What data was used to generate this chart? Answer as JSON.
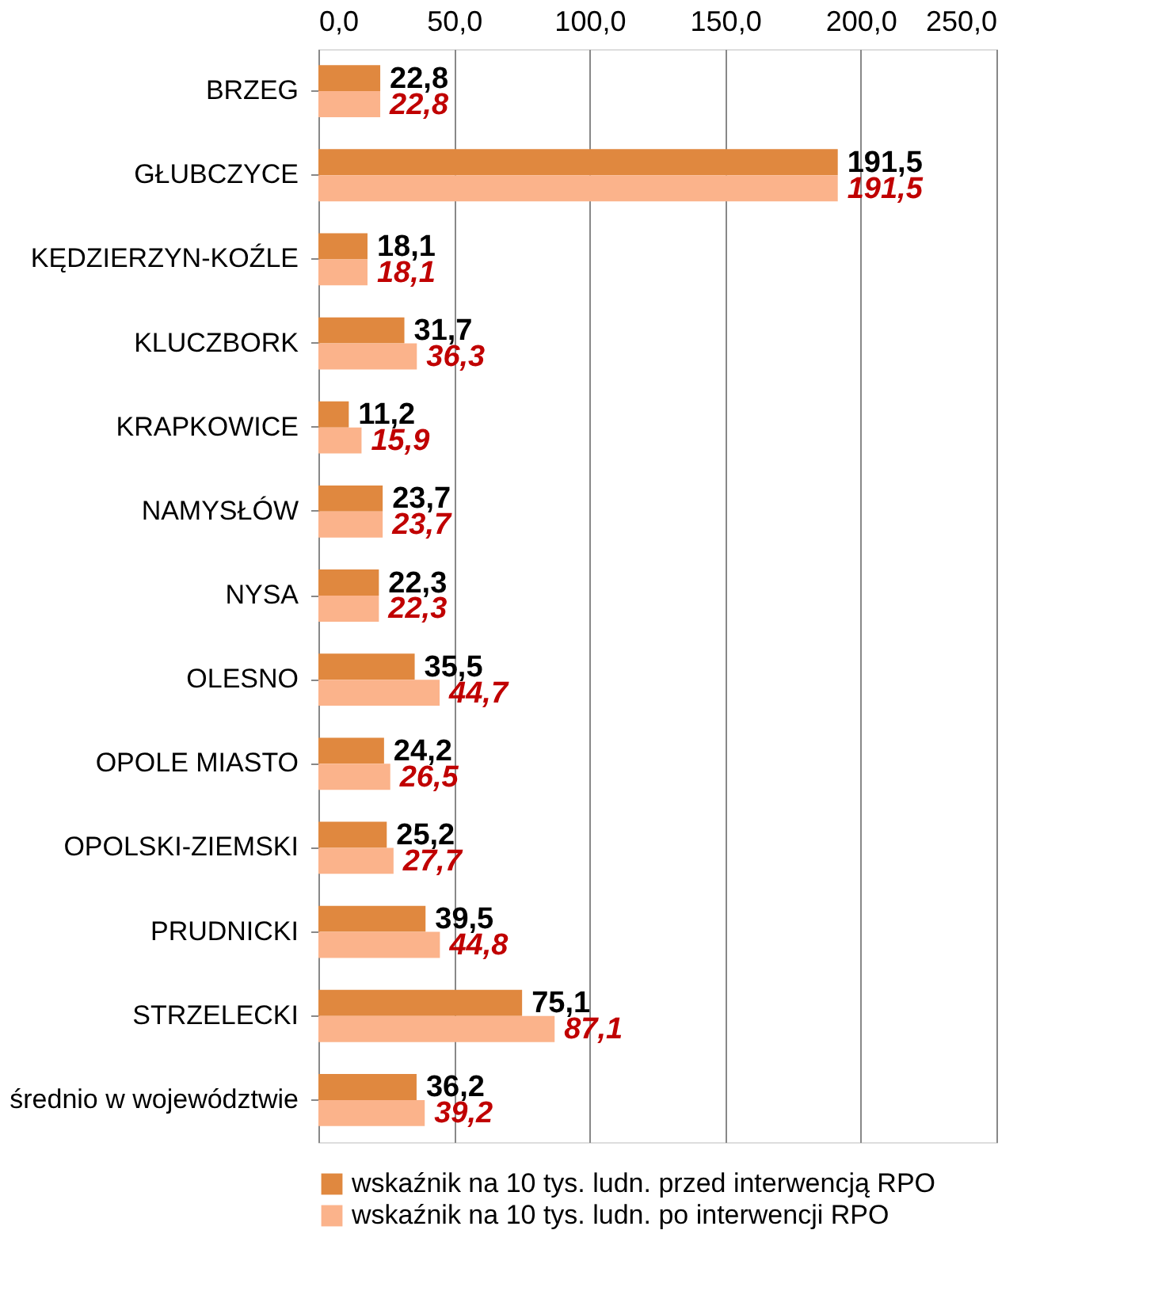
{
  "chart_data": {
    "type": "bar",
    "orientation": "horizontal",
    "categories": [
      "BRZEG",
      "GŁUBCZYCE",
      "KĘDZIERZYN-KOŹLE",
      "KLUCZBORK",
      "KRAPKOWICE",
      "NAMYSŁÓW",
      "NYSA",
      "OLESNO",
      "OPOLE MIASTO",
      "OPOLSKI-ZIEMSKI",
      "PRUDNICKI",
      "STRZELECKI",
      "średnio w województwie"
    ],
    "series": [
      {
        "name": "wskaźnik na 10 tys. ludn. przed interwencją RPO",
        "color": "#e0883f",
        "values": [
          22.8,
          191.5,
          18.1,
          31.7,
          11.2,
          23.7,
          22.3,
          35.5,
          24.2,
          25.2,
          39.5,
          75.1,
          36.2
        ],
        "value_labels": [
          "22,8",
          "191,5",
          "18,1",
          "31,7",
          "11,2",
          "23,7",
          "22,3",
          "35,5",
          "24,2",
          "25,2",
          "39,5",
          "75,1",
          "36,2"
        ]
      },
      {
        "name": "wskaźnik na 10 tys. ludn. po interwencji RPO",
        "color": "#fbb38b",
        "values": [
          22.8,
          191.5,
          18.1,
          36.3,
          15.9,
          23.7,
          22.3,
          44.7,
          26.5,
          27.7,
          44.8,
          87.1,
          39.2
        ],
        "value_labels": [
          "22,8",
          "191,5",
          "18,1",
          "36,3",
          "15,9",
          "23,7",
          "22,3",
          "44,7",
          "26,5",
          "27,7",
          "44,8",
          "87,1",
          "39,2"
        ]
      }
    ],
    "xlim": [
      0,
      250
    ],
    "xticks": [
      {
        "value": 0,
        "label": "0,0"
      },
      {
        "value": 50,
        "label": "50,0"
      },
      {
        "value": 100,
        "label": "100,0"
      },
      {
        "value": 150,
        "label": "150,0"
      },
      {
        "value": 200,
        "label": "200,0"
      },
      {
        "value": 250,
        "label": "250,0"
      }
    ],
    "grid": "x",
    "legend": "bottom"
  }
}
